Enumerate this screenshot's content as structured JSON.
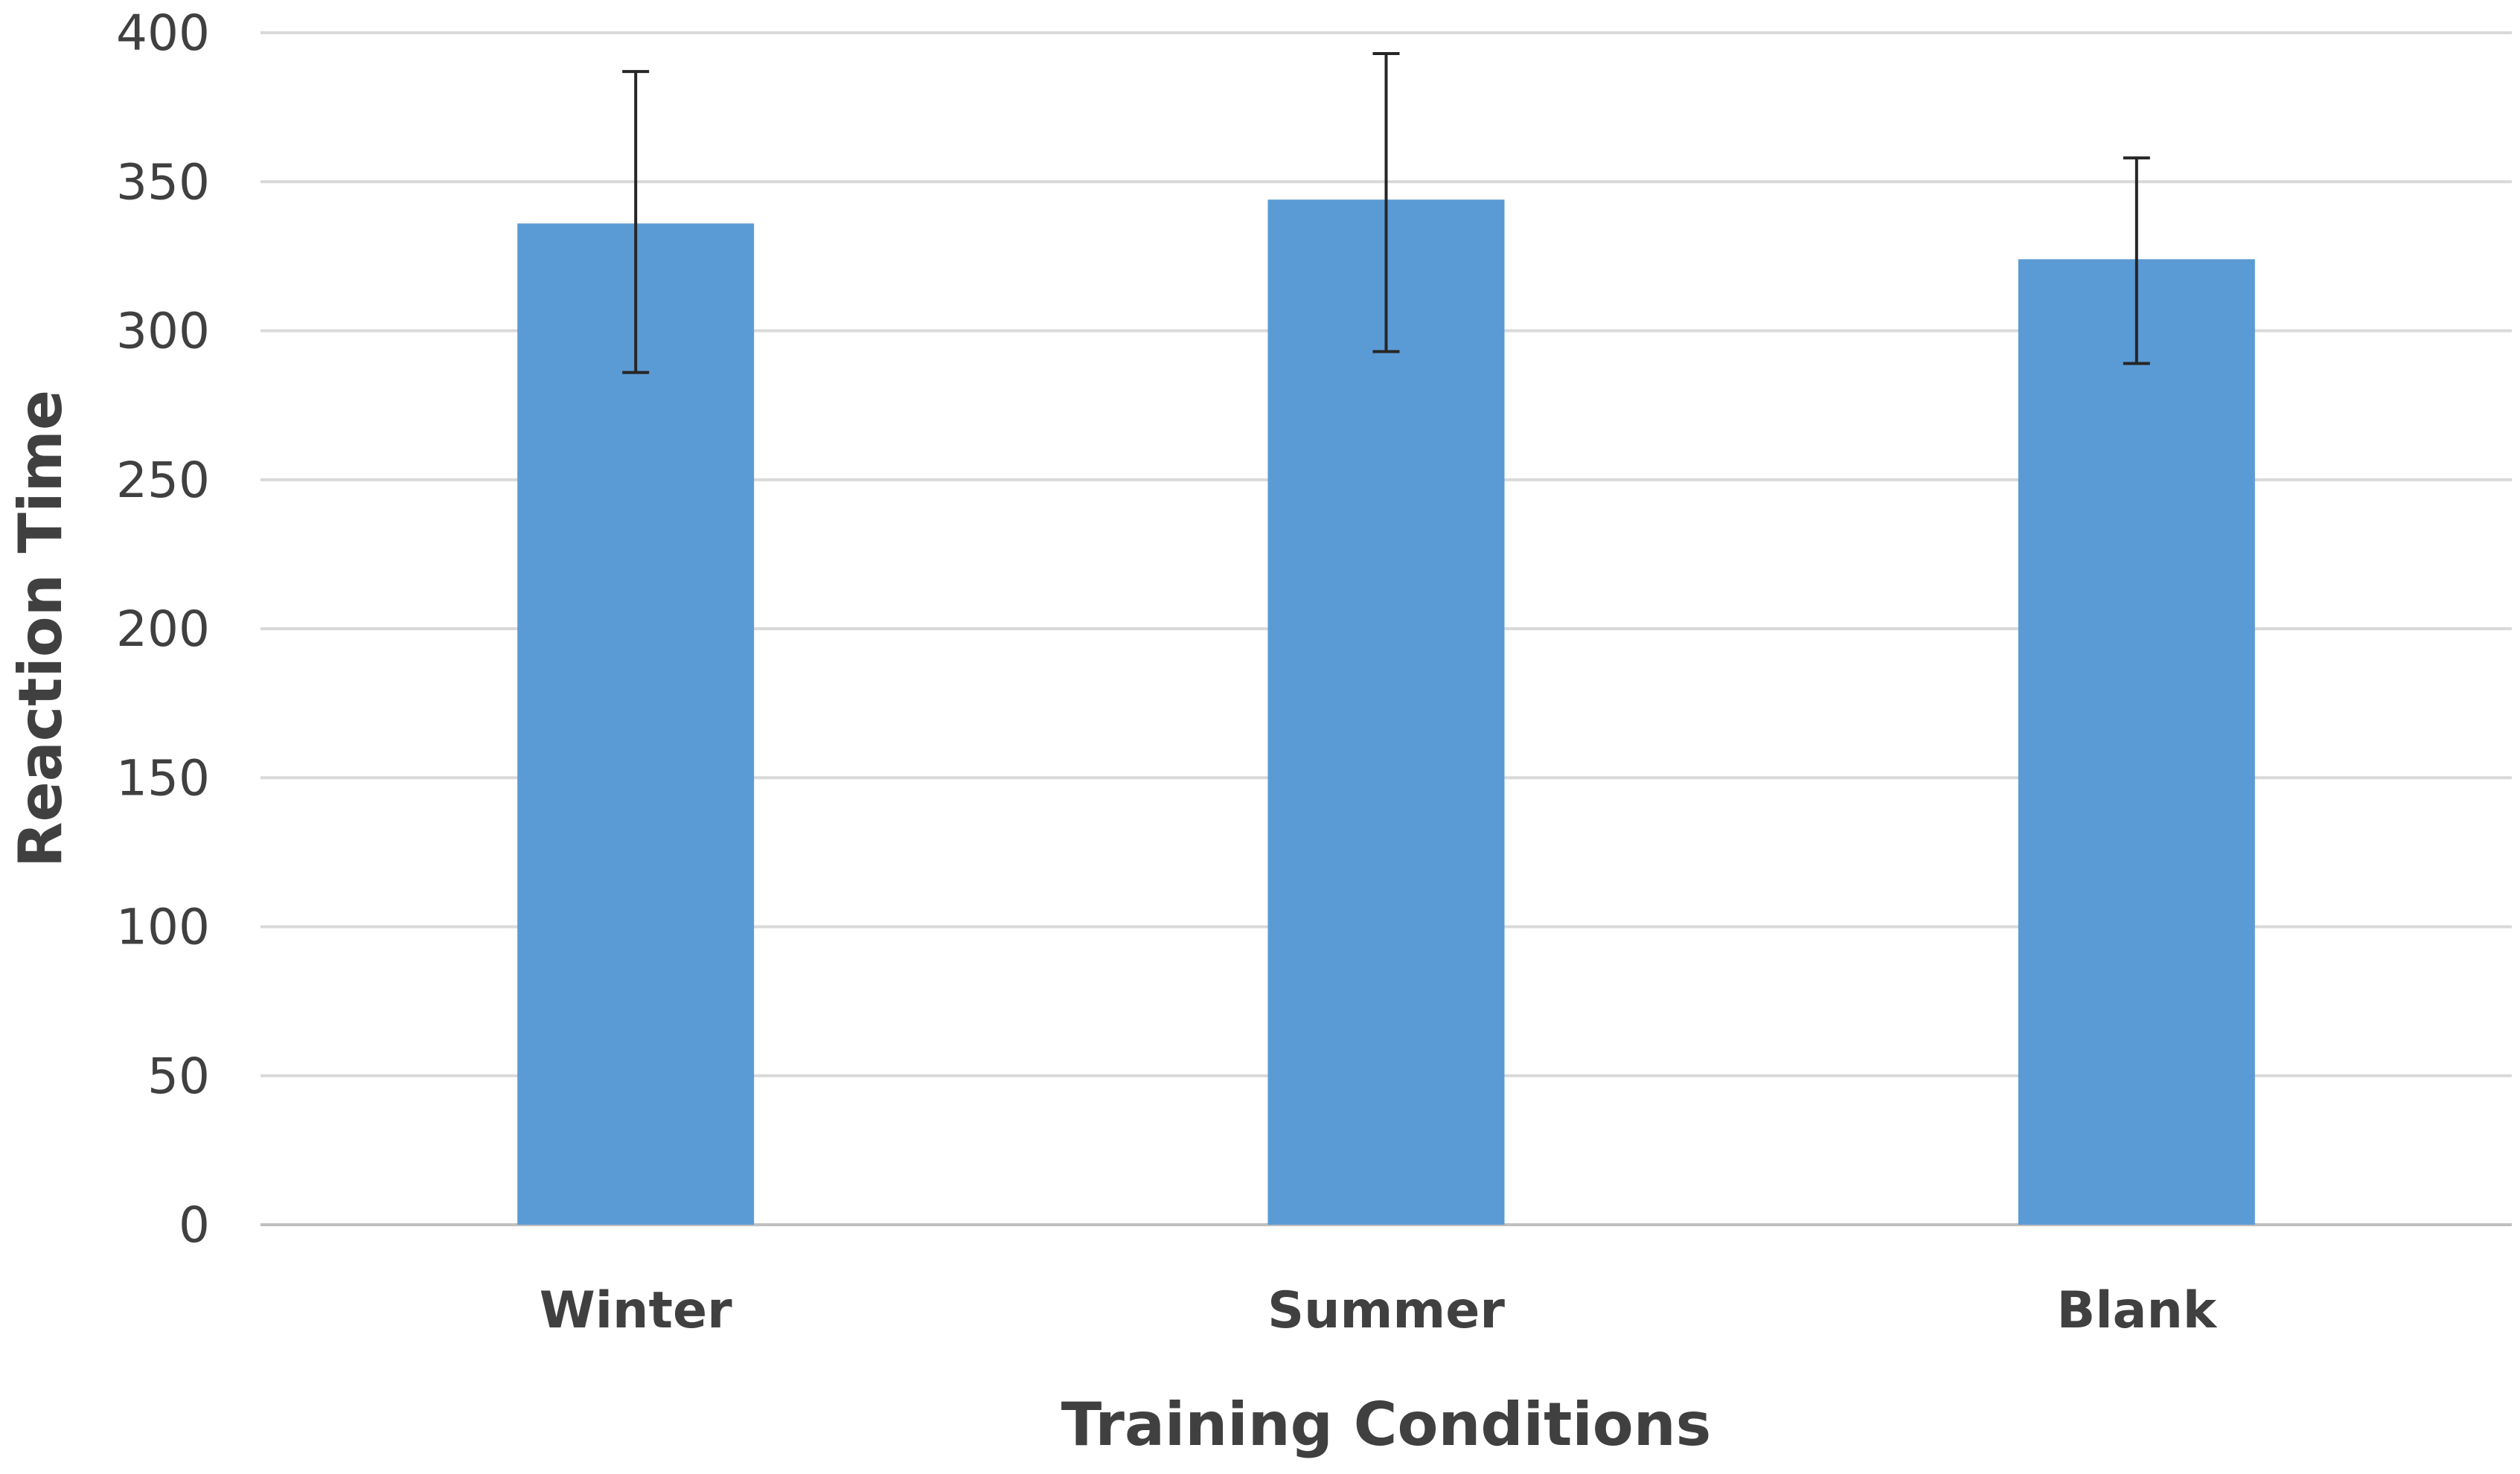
{
  "chart_data": {
    "type": "bar",
    "title": "",
    "xlabel": "Training Conditions",
    "ylabel": "Reaction Time",
    "categories": [
      "Winter",
      "Summer",
      "Blank"
    ],
    "values": [
      336,
      344,
      324
    ],
    "error_bars": {
      "upper": [
        387,
        393,
        358
      ],
      "lower": [
        286,
        293,
        289
      ]
    },
    "ylim": [
      0,
      400
    ],
    "yticks": [
      "0",
      "50",
      "100",
      "150",
      "200",
      "250",
      "300",
      "350",
      "400"
    ],
    "grid": true,
    "legend": "none",
    "bar_color": "#5b9bd5"
  }
}
